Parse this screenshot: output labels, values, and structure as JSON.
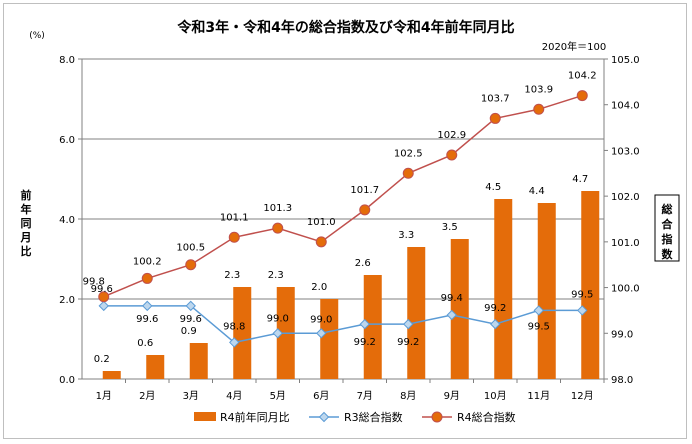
{
  "chart_data": {
    "type": "bar+line",
    "title": "令和3年・令和4年の総合指数及び令和4年前年同月比",
    "base_note": "2020年＝100",
    "left_unit": "(%)",
    "left_axis_title": "前年同月比",
    "right_axis_title": "総合指数",
    "categories": [
      "1月",
      "2月",
      "3月",
      "4月",
      "5月",
      "6月",
      "7月",
      "8月",
      "9月",
      "10月",
      "11月",
      "12月"
    ],
    "left_ylim": [
      0,
      8
    ],
    "left_ticks": [
      "0.0",
      "2.0",
      "4.0",
      "6.0",
      "8.0"
    ],
    "right_ylim": [
      98,
      105
    ],
    "right_ticks": [
      "98.0",
      "99.0",
      "100.0",
      "101.0",
      "102.0",
      "103.0",
      "104.0",
      "105.0"
    ],
    "series": [
      {
        "name": "R4前年同月比",
        "kind": "bar",
        "axis": "left",
        "color": "#E46C0A",
        "values": [
          0.2,
          0.6,
          0.9,
          2.3,
          2.3,
          2.0,
          2.6,
          3.3,
          3.5,
          4.5,
          4.4,
          4.7
        ],
        "labels": [
          "0.2",
          "0.6",
          "0.9",
          "2.3",
          "2.3",
          "2.0",
          "2.6",
          "3.3",
          "3.5",
          "4.5",
          "4.4",
          "4.7"
        ]
      },
      {
        "name": "R3総合指数",
        "kind": "line",
        "axis": "right",
        "color": "#5B9BD5",
        "marker": "diamond",
        "values": [
          99.6,
          99.6,
          99.6,
          98.8,
          99.0,
          99.0,
          99.2,
          99.2,
          99.4,
          99.2,
          99.5,
          99.5
        ],
        "labels": [
          "99.6",
          "99.6",
          "99.6",
          "98.8",
          "99.0",
          "99.0",
          "99.2",
          "99.2",
          "99.4",
          "99.2",
          "99.5",
          "99.5"
        ]
      },
      {
        "name": "R4総合指数",
        "kind": "line",
        "axis": "right",
        "color": "#C0504D",
        "marker": "circle",
        "values": [
          99.8,
          100.2,
          100.5,
          101.1,
          101.3,
          101.0,
          101.7,
          102.5,
          102.9,
          103.7,
          103.9,
          104.2
        ],
        "labels": [
          "99.8",
          "100.2",
          "100.5",
          "101.1",
          "101.3",
          "101.0",
          "101.7",
          "102.5",
          "102.9",
          "103.7",
          "103.9",
          "104.2"
        ]
      }
    ]
  }
}
